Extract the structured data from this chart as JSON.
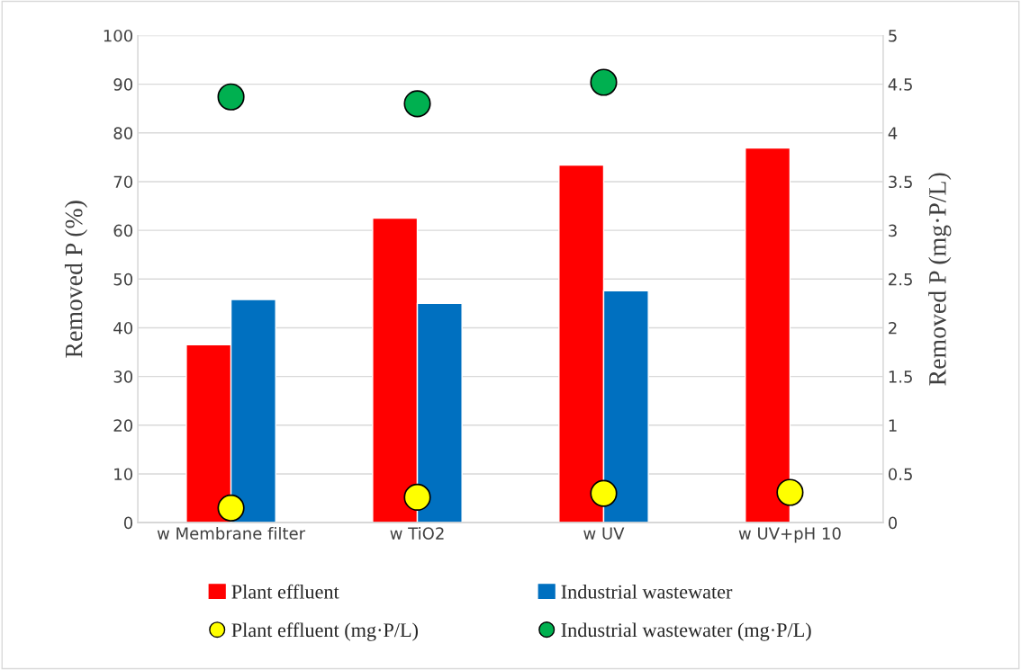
{
  "chart_data": {
    "type": "bar",
    "ylabel": "Removed P (%)",
    "y2label": "Removed P (mg·P/L)",
    "categories": [
      "w Membrane filter",
      "w TiO2",
      "w UV",
      "w UV+pH 10"
    ],
    "series": [
      {
        "name": "Plant effluent",
        "color": "#ff0000",
        "values": [
          36.5,
          62.5,
          73.4,
          76.9
        ]
      },
      {
        "name": "Industrial wastewater",
        "color": "#0070c0",
        "values": [
          45.8,
          45.0,
          47.6,
          null
        ]
      },
      {
        "name": "Plant effluent (mg·P/L)",
        "type": "scatter",
        "axis": "y2",
        "marker": "circle",
        "color": "#ffff00",
        "values": [
          0.15,
          0.26,
          0.3,
          0.31
        ]
      },
      {
        "name": "Industrial wastewater (mg·P/L)",
        "type": "scatter",
        "axis": "y2",
        "marker": "circle",
        "color": "#00b050",
        "values": [
          4.37,
          4.3,
          4.52,
          null
        ]
      }
    ],
    "ylim": [
      0,
      100
    ],
    "yticks": [
      0,
      10,
      20,
      30,
      40,
      50,
      60,
      70,
      80,
      90,
      100
    ],
    "y2lim": [
      0,
      5
    ],
    "y2ticks": [
      0,
      {
        "value": 0.5,
        "label": "0.5"
      },
      1,
      {
        "value": 1.5,
        "label": "1.5"
      },
      2,
      {
        "value": 2.5,
        "label": "2.5"
      },
      3,
      {
        "value": 3.5,
        "label": "3.5"
      },
      4,
      {
        "value": 4.5,
        "label": "4.5"
      },
      5
    ],
    "grid": "y",
    "legend": "bottom"
  }
}
